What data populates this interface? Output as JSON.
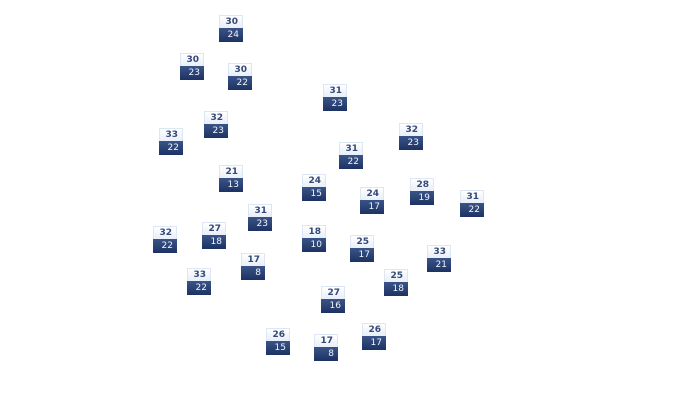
{
  "map": {
    "colors": {
      "high_bg": "#eef2fa",
      "high_text": "#34497a",
      "low_bg": "#25396b",
      "low_text": "#ffffff"
    },
    "stations": [
      {
        "high": "30",
        "low": "24"
      },
      {
        "high": "30",
        "low": "23"
      },
      {
        "high": "30",
        "low": "22"
      },
      {
        "high": "31",
        "low": "23"
      },
      {
        "high": "32",
        "low": "23"
      },
      {
        "high": "33",
        "low": "22"
      },
      {
        "high": "32",
        "low": "23"
      },
      {
        "high": "31",
        "low": "22"
      },
      {
        "high": "21",
        "low": "13"
      },
      {
        "high": "24",
        "low": "15"
      },
      {
        "high": "24",
        "low": "17"
      },
      {
        "high": "28",
        "low": "19"
      },
      {
        "high": "31",
        "low": "22"
      },
      {
        "high": "32",
        "low": "22"
      },
      {
        "high": "27",
        "low": "18"
      },
      {
        "high": "31",
        "low": "23"
      },
      {
        "high": "18",
        "low": "10"
      },
      {
        "high": "25",
        "low": "17"
      },
      {
        "high": "33",
        "low": "21"
      },
      {
        "high": "17",
        "low": "8"
      },
      {
        "high": "33",
        "low": "22"
      },
      {
        "high": "25",
        "low": "18"
      },
      {
        "high": "27",
        "low": "16"
      },
      {
        "high": "26",
        "low": "15"
      },
      {
        "high": "17",
        "low": "8"
      },
      {
        "high": "26",
        "low": "17"
      }
    ]
  }
}
